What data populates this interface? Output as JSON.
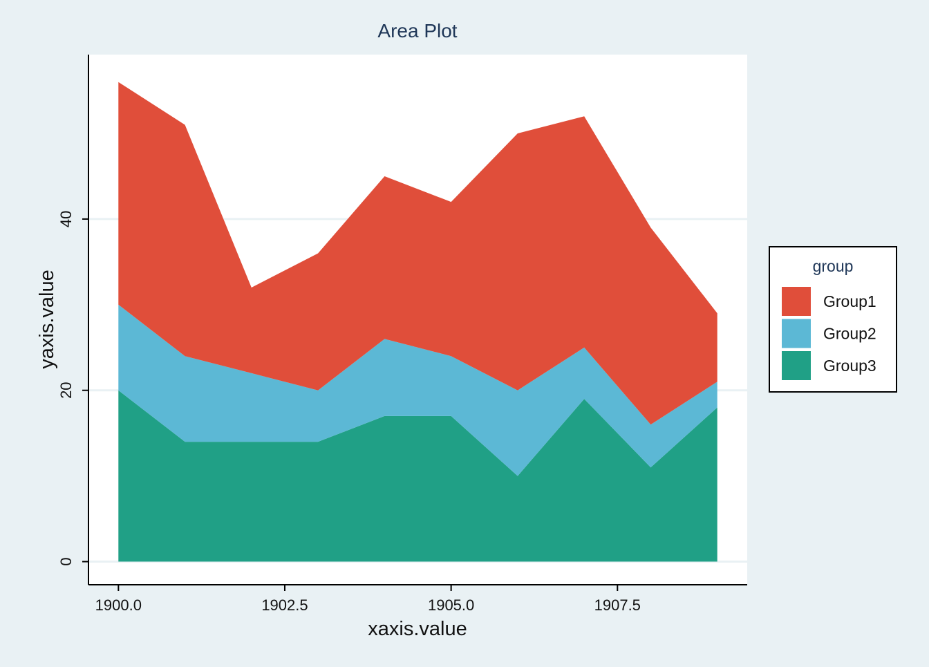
{
  "chart_data": {
    "type": "area",
    "stacked": true,
    "title": "Area Plot",
    "xlabel": "xaxis.value",
    "ylabel": "yaxis.value",
    "x": [
      1900,
      1901,
      1902,
      1903,
      1904,
      1905,
      1906,
      1907,
      1908,
      1909
    ],
    "xlim": [
      1899.55,
      1909.45
    ],
    "ylim": [
      -2.7,
      59.2
    ],
    "x_ticks": [
      1900,
      1902.5,
      1905,
      1907.5
    ],
    "x_tick_labels": [
      "1900.0",
      "1902.5",
      "1905.0",
      "1907.5"
    ],
    "y_ticks": [
      0,
      20,
      40
    ],
    "y_tick_labels": [
      "0",
      "20",
      "40"
    ],
    "grid": "horizontal",
    "legend_title": "group",
    "legend_position": "right",
    "series": [
      {
        "name": "Group1",
        "color": "#e04e3a",
        "values": [
          26,
          27,
          10,
          16,
          19,
          18,
          30,
          27,
          23,
          8
        ]
      },
      {
        "name": "Group2",
        "color": "#5cb8d5",
        "values": [
          10,
          10,
          8,
          6,
          9,
          7,
          10,
          6,
          5,
          3
        ]
      },
      {
        "name": "Group3",
        "color": "#20a086",
        "values": [
          20,
          14,
          14,
          14,
          17,
          17,
          10,
          19,
          11,
          18
        ]
      }
    ],
    "colors": {
      "background": "#e9f1f4",
      "panel": "#ffffff",
      "grid": "#e9f1f4",
      "title": "#1e3657"
    }
  }
}
